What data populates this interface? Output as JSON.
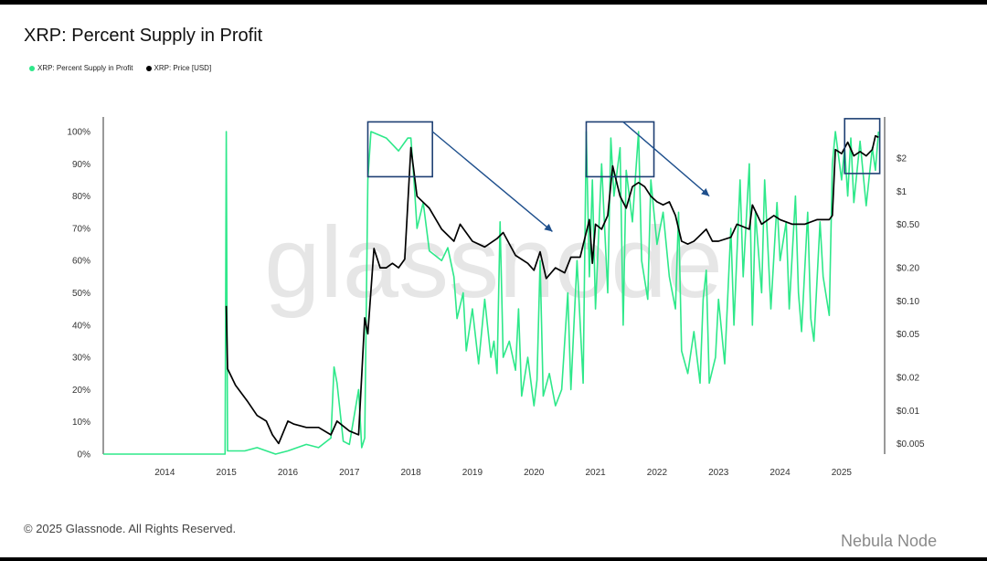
{
  "header": {
    "title": "XRP: Percent Supply in Profit"
  },
  "legend": {
    "items": [
      {
        "label": "XRP: Percent Supply in Profit",
        "color": "#2ee88a"
      },
      {
        "label": "XRP: Price [USD]",
        "color": "#000000"
      }
    ]
  },
  "footer": {
    "copyright": "© 2025 Glassnode. All Rights Reserved.",
    "watermark_text": "Nebula Node"
  },
  "watermark": "glassnode",
  "chart_data": {
    "type": "line",
    "title": "XRP: Percent Supply in Profit",
    "x_ticks": [
      "2014",
      "2015",
      "2016",
      "2017",
      "2018",
      "2019",
      "2020",
      "2021",
      "2022",
      "2023",
      "2024",
      "2025"
    ],
    "xlim": [
      2013.0,
      2025.7
    ],
    "y_left_ticks": [
      "0%",
      "10%",
      "20%",
      "30%",
      "40%",
      "50%",
      "60%",
      "70%",
      "80%",
      "90%",
      "100%"
    ],
    "y_left_lim": [
      0,
      100
    ],
    "y_right_ticks": [
      "$0.005",
      "$0.01",
      "$0.02",
      "$0.05",
      "$0.10",
      "$0.20",
      "$0.50",
      "$1",
      "$2"
    ],
    "y_right_scale": "log",
    "y_right_lim": [
      0.004,
      3.5
    ],
    "grid": false,
    "legend_position": "top-left",
    "series": [
      {
        "name": "XRP: Percent Supply in Profit",
        "color": "#2ee88a",
        "axis": "left",
        "points": [
          [
            2013.0,
            0
          ],
          [
            2014.98,
            0
          ],
          [
            2015.0,
            100
          ],
          [
            2015.02,
            1
          ],
          [
            2015.3,
            1
          ],
          [
            2015.5,
            2
          ],
          [
            2015.8,
            0
          ],
          [
            2016.0,
            1
          ],
          [
            2016.3,
            3
          ],
          [
            2016.5,
            2
          ],
          [
            2016.7,
            5
          ],
          [
            2016.75,
            27
          ],
          [
            2016.8,
            22
          ],
          [
            2016.9,
            4
          ],
          [
            2017.0,
            3
          ],
          [
            2017.15,
            20
          ],
          [
            2017.2,
            2
          ],
          [
            2017.25,
            5
          ],
          [
            2017.3,
            85
          ],
          [
            2017.35,
            100
          ],
          [
            2017.6,
            98
          ],
          [
            2017.8,
            94
          ],
          [
            2017.95,
            98
          ],
          [
            2018.0,
            98
          ],
          [
            2018.05,
            85
          ],
          [
            2018.1,
            70
          ],
          [
            2018.2,
            78
          ],
          [
            2018.3,
            63
          ],
          [
            2018.5,
            60
          ],
          [
            2018.6,
            64
          ],
          [
            2018.7,
            55
          ],
          [
            2018.75,
            42
          ],
          [
            2018.85,
            50
          ],
          [
            2018.9,
            32
          ],
          [
            2019.0,
            45
          ],
          [
            2019.1,
            28
          ],
          [
            2019.2,
            48
          ],
          [
            2019.3,
            30
          ],
          [
            2019.35,
            35
          ],
          [
            2019.4,
            25
          ],
          [
            2019.45,
            72
          ],
          [
            2019.5,
            30
          ],
          [
            2019.6,
            35
          ],
          [
            2019.7,
            26
          ],
          [
            2019.75,
            45
          ],
          [
            2019.8,
            18
          ],
          [
            2019.9,
            30
          ],
          [
            2020.0,
            15
          ],
          [
            2020.05,
            23
          ],
          [
            2020.1,
            60
          ],
          [
            2020.15,
            18
          ],
          [
            2020.25,
            25
          ],
          [
            2020.35,
            15
          ],
          [
            2020.45,
            20
          ],
          [
            2020.55,
            50
          ],
          [
            2020.6,
            20
          ],
          [
            2020.65,
            40
          ],
          [
            2020.7,
            60
          ],
          [
            2020.8,
            22
          ],
          [
            2020.85,
            100
          ],
          [
            2020.9,
            55
          ],
          [
            2020.95,
            85
          ],
          [
            2021.0,
            45
          ],
          [
            2021.1,
            90
          ],
          [
            2021.2,
            50
          ],
          [
            2021.25,
            98
          ],
          [
            2021.3,
            80
          ],
          [
            2021.4,
            95
          ],
          [
            2021.45,
            40
          ],
          [
            2021.5,
            88
          ],
          [
            2021.6,
            72
          ],
          [
            2021.7,
            100
          ],
          [
            2021.75,
            60
          ],
          [
            2021.85,
            48
          ],
          [
            2021.9,
            85
          ],
          [
            2022.0,
            65
          ],
          [
            2022.1,
            75
          ],
          [
            2022.2,
            55
          ],
          [
            2022.3,
            45
          ],
          [
            2022.35,
            75
          ],
          [
            2022.4,
            32
          ],
          [
            2022.5,
            25
          ],
          [
            2022.6,
            38
          ],
          [
            2022.7,
            22
          ],
          [
            2022.75,
            48
          ],
          [
            2022.8,
            57
          ],
          [
            2022.85,
            22
          ],
          [
            2022.95,
            30
          ],
          [
            2023.0,
            48
          ],
          [
            2023.1,
            28
          ],
          [
            2023.2,
            70
          ],
          [
            2023.25,
            40
          ],
          [
            2023.35,
            85
          ],
          [
            2023.4,
            55
          ],
          [
            2023.5,
            90
          ],
          [
            2023.55,
            40
          ],
          [
            2023.6,
            75
          ],
          [
            2023.7,
            50
          ],
          [
            2023.75,
            85
          ],
          [
            2023.85,
            45
          ],
          [
            2023.95,
            78
          ],
          [
            2024.0,
            60
          ],
          [
            2024.1,
            72
          ],
          [
            2024.15,
            45
          ],
          [
            2024.25,
            80
          ],
          [
            2024.3,
            50
          ],
          [
            2024.35,
            38
          ],
          [
            2024.45,
            75
          ],
          [
            2024.5,
            42
          ],
          [
            2024.55,
            35
          ],
          [
            2024.65,
            72
          ],
          [
            2024.7,
            55
          ],
          [
            2024.8,
            43
          ],
          [
            2024.85,
            90
          ],
          [
            2024.9,
            100
          ],
          [
            2025.0,
            85
          ],
          [
            2025.05,
            95
          ],
          [
            2025.1,
            80
          ],
          [
            2025.15,
            98
          ],
          [
            2025.2,
            78
          ],
          [
            2025.3,
            97
          ],
          [
            2025.4,
            77
          ],
          [
            2025.5,
            95
          ],
          [
            2025.55,
            88
          ],
          [
            2025.6,
            100
          ]
        ]
      },
      {
        "name": "XRP: Price [USD]",
        "color": "#000000",
        "axis": "right",
        "points": [
          [
            2015.0,
            0.09
          ],
          [
            2015.02,
            0.024
          ],
          [
            2015.15,
            0.017
          ],
          [
            2015.35,
            0.012
          ],
          [
            2015.5,
            0.009
          ],
          [
            2015.65,
            0.008
          ],
          [
            2015.75,
            0.006
          ],
          [
            2015.85,
            0.005
          ],
          [
            2016.0,
            0.008
          ],
          [
            2016.1,
            0.0075
          ],
          [
            2016.3,
            0.007
          ],
          [
            2016.5,
            0.007
          ],
          [
            2016.7,
            0.006
          ],
          [
            2016.8,
            0.008
          ],
          [
            2017.0,
            0.0065
          ],
          [
            2017.15,
            0.006
          ],
          [
            2017.25,
            0.07
          ],
          [
            2017.3,
            0.05
          ],
          [
            2017.4,
            0.3
          ],
          [
            2017.5,
            0.2
          ],
          [
            2017.6,
            0.2
          ],
          [
            2017.7,
            0.22
          ],
          [
            2017.8,
            0.2
          ],
          [
            2017.9,
            0.24
          ],
          [
            2018.0,
            2.5
          ],
          [
            2018.05,
            1.5
          ],
          [
            2018.1,
            0.9
          ],
          [
            2018.3,
            0.7
          ],
          [
            2018.5,
            0.45
          ],
          [
            2018.7,
            0.35
          ],
          [
            2018.8,
            0.5
          ],
          [
            2019.0,
            0.35
          ],
          [
            2019.2,
            0.31
          ],
          [
            2019.4,
            0.37
          ],
          [
            2019.5,
            0.42
          ],
          [
            2019.7,
            0.26
          ],
          [
            2019.9,
            0.22
          ],
          [
            2020.0,
            0.19
          ],
          [
            2020.1,
            0.28
          ],
          [
            2020.2,
            0.16
          ],
          [
            2020.35,
            0.2
          ],
          [
            2020.5,
            0.18
          ],
          [
            2020.6,
            0.25
          ],
          [
            2020.75,
            0.25
          ],
          [
            2020.9,
            0.55
          ],
          [
            2020.95,
            0.22
          ],
          [
            2021.0,
            0.5
          ],
          [
            2021.1,
            0.45
          ],
          [
            2021.2,
            0.6
          ],
          [
            2021.28,
            1.7
          ],
          [
            2021.4,
            0.9
          ],
          [
            2021.5,
            0.7
          ],
          [
            2021.6,
            1.1
          ],
          [
            2021.7,
            1.2
          ],
          [
            2021.8,
            1.1
          ],
          [
            2021.9,
            0.9
          ],
          [
            2022.0,
            0.8
          ],
          [
            2022.1,
            0.75
          ],
          [
            2022.2,
            0.8
          ],
          [
            2022.3,
            0.6
          ],
          [
            2022.4,
            0.35
          ],
          [
            2022.5,
            0.33
          ],
          [
            2022.6,
            0.35
          ],
          [
            2022.8,
            0.45
          ],
          [
            2022.9,
            0.35
          ],
          [
            2023.0,
            0.35
          ],
          [
            2023.2,
            0.38
          ],
          [
            2023.3,
            0.5
          ],
          [
            2023.5,
            0.45
          ],
          [
            2023.55,
            0.75
          ],
          [
            2023.7,
            0.5
          ],
          [
            2023.9,
            0.6
          ],
          [
            2024.0,
            0.55
          ],
          [
            2024.2,
            0.5
          ],
          [
            2024.4,
            0.5
          ],
          [
            2024.6,
            0.55
          ],
          [
            2024.8,
            0.55
          ],
          [
            2024.85,
            0.6
          ],
          [
            2024.9,
            2.4
          ],
          [
            2025.0,
            2.2
          ],
          [
            2025.1,
            2.8
          ],
          [
            2025.2,
            2.1
          ],
          [
            2025.3,
            2.3
          ],
          [
            2025.4,
            2.1
          ],
          [
            2025.5,
            2.4
          ],
          [
            2025.55,
            3.2
          ],
          [
            2025.6,
            3.1
          ]
        ]
      }
    ],
    "annotations": [
      {
        "type": "box",
        "x": [
          2017.3,
          2018.35
        ],
        "y_percent": [
          86,
          103
        ]
      },
      {
        "type": "box",
        "x": [
          2020.85,
          2021.95
        ],
        "y_percent": [
          86,
          103
        ]
      },
      {
        "type": "box",
        "x": [
          2025.05,
          2025.62
        ],
        "y_percent": [
          87,
          104
        ]
      },
      {
        "type": "arrow",
        "from": [
          2018.35,
          100
        ],
        "to": [
          2020.3,
          69
        ]
      },
      {
        "type": "arrow",
        "from": [
          2021.45,
          103
        ],
        "to": [
          2022.85,
          80
        ]
      }
    ]
  }
}
